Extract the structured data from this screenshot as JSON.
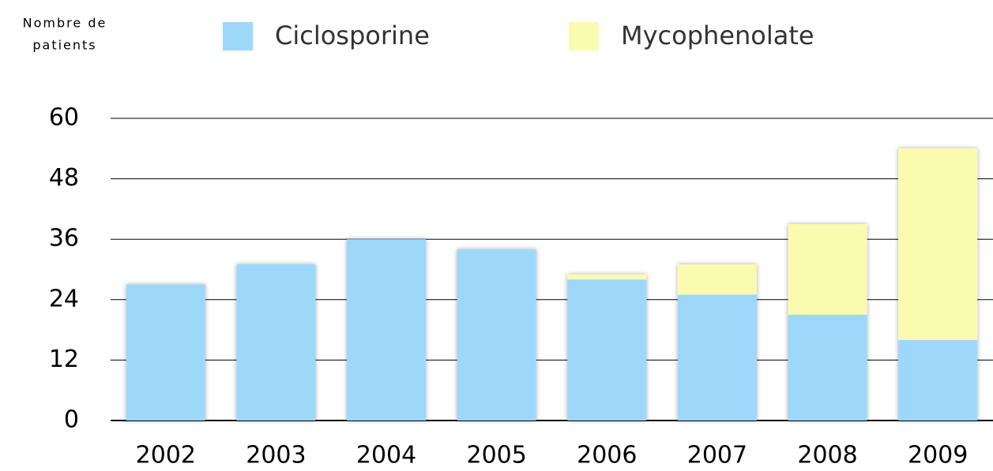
{
  "chart_data": {
    "type": "stacked_bar",
    "y_label_lines": [
      "Nombre de",
      "patients"
    ],
    "categories": [
      "2002",
      "2003",
      "2004",
      "2005",
      "2006",
      "2007",
      "2008",
      "2009"
    ],
    "series": [
      {
        "name": "Ciclosporine",
        "color": "#9dd8fb",
        "values": [
          27,
          31,
          36,
          34,
          28,
          25,
          21,
          16
        ]
      },
      {
        "name": "Mycophenolate",
        "color": "#fbfbb0",
        "values": [
          0,
          0,
          0,
          0,
          1,
          6,
          18,
          38
        ]
      }
    ],
    "ylim": [
      0,
      60
    ],
    "yticks": [
      0,
      12,
      24,
      36,
      48,
      60
    ],
    "grid": true
  }
}
